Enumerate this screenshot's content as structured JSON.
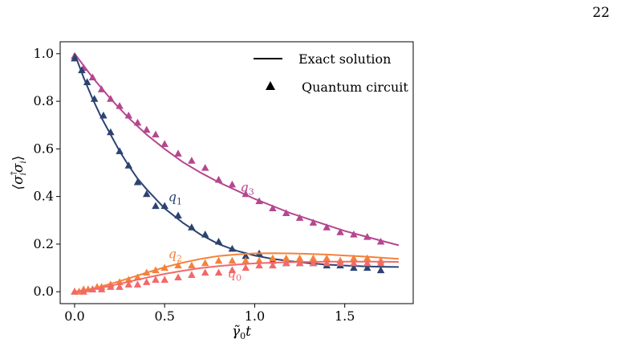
{
  "page_number": "22",
  "chart_data": {
    "type": "line",
    "xlabel": "γ̃₀t",
    "ylabel": "⟨σᵢ†σᵢ⟩",
    "xlim": [
      -0.08,
      1.88
    ],
    "ylim": [
      -0.05,
      1.05
    ],
    "x_ticks": [
      0.0,
      0.5,
      1.0,
      1.5
    ],
    "x_tick_labels": [
      "0.0",
      "0.5",
      "1.0",
      "1.5"
    ],
    "y_ticks": [
      0.0,
      0.2,
      0.4,
      0.6,
      0.8,
      1.0
    ],
    "y_tick_labels": [
      "0.0",
      "0.2",
      "0.4",
      "0.6",
      "0.8",
      "1.0"
    ],
    "grid": false,
    "legend": {
      "placement": "top-right",
      "entries": [
        {
          "label": "Exact solution",
          "marker": "line"
        },
        {
          "label": "Quantum circuit",
          "marker": "triangle"
        }
      ]
    },
    "series": [
      {
        "name": "q3",
        "color": "#b5478f",
        "exact": {
          "x": [
            0.0,
            0.1,
            0.2,
            0.3,
            0.4,
            0.5,
            0.6,
            0.7,
            0.8,
            0.9,
            1.0,
            1.1,
            1.2,
            1.3,
            1.4,
            1.5,
            1.6,
            1.7,
            1.8
          ],
          "y": [
            1.0,
            0.9,
            0.81,
            0.73,
            0.66,
            0.6,
            0.545,
            0.5,
            0.46,
            0.425,
            0.39,
            0.36,
            0.33,
            0.305,
            0.28,
            0.255,
            0.235,
            0.215,
            0.195
          ]
        },
        "circuit": {
          "x": [
            0.0,
            0.05,
            0.1,
            0.15,
            0.2,
            0.25,
            0.3,
            0.35,
            0.4,
            0.45,
            0.5,
            0.575,
            0.65,
            0.725,
            0.8,
            0.875,
            0.95,
            1.025,
            1.1,
            1.175,
            1.25,
            1.325,
            1.4,
            1.475,
            1.55,
            1.625,
            1.7
          ],
          "y": [
            0.99,
            0.94,
            0.9,
            0.85,
            0.81,
            0.78,
            0.74,
            0.71,
            0.68,
            0.66,
            0.62,
            0.58,
            0.55,
            0.52,
            0.47,
            0.45,
            0.41,
            0.38,
            0.35,
            0.33,
            0.31,
            0.29,
            0.27,
            0.25,
            0.24,
            0.23,
            0.21
          ]
        },
        "label": "q3",
        "label_x": 0.92,
        "label_y": 0.42
      },
      {
        "name": "q1",
        "color": "#2c4371",
        "exact": {
          "x": [
            0.0,
            0.05,
            0.1,
            0.15,
            0.2,
            0.25,
            0.3,
            0.35,
            0.4,
            0.45,
            0.5,
            0.6,
            0.7,
            0.8,
            0.9,
            1.0,
            1.1,
            1.2,
            1.3,
            1.4,
            1.5,
            1.6,
            1.7,
            1.8
          ],
          "y": [
            1.0,
            0.9,
            0.81,
            0.73,
            0.66,
            0.59,
            0.53,
            0.475,
            0.43,
            0.39,
            0.35,
            0.29,
            0.24,
            0.2,
            0.172,
            0.152,
            0.138,
            0.128,
            0.12,
            0.114,
            0.11,
            0.107,
            0.105,
            0.104
          ]
        },
        "circuit": {
          "x": [
            0.0,
            0.04,
            0.07,
            0.11,
            0.16,
            0.2,
            0.25,
            0.3,
            0.35,
            0.4,
            0.45,
            0.5,
            0.575,
            0.65,
            0.725,
            0.8,
            0.875,
            0.95,
            1.025,
            1.1,
            1.175,
            1.25,
            1.325,
            1.4,
            1.475,
            1.55,
            1.625,
            1.7
          ],
          "y": [
            0.98,
            0.93,
            0.88,
            0.81,
            0.74,
            0.67,
            0.59,
            0.53,
            0.46,
            0.41,
            0.36,
            0.36,
            0.32,
            0.27,
            0.24,
            0.21,
            0.18,
            0.15,
            0.16,
            0.13,
            0.12,
            0.12,
            0.12,
            0.11,
            0.11,
            0.1,
            0.1,
            0.09
          ]
        },
        "label": "q1",
        "label_x": 0.52,
        "label_y": 0.38
      },
      {
        "name": "q2",
        "color": "#f5823a",
        "exact": {
          "x": [
            0.0,
            0.1,
            0.2,
            0.3,
            0.4,
            0.5,
            0.6,
            0.7,
            0.8,
            0.9,
            1.0,
            1.1,
            1.2,
            1.3,
            1.4,
            1.5,
            1.6,
            1.7,
            1.8
          ],
          "y": [
            0.0,
            0.013,
            0.033,
            0.056,
            0.08,
            0.103,
            0.122,
            0.138,
            0.15,
            0.157,
            0.161,
            0.162,
            0.161,
            0.159,
            0.156,
            0.152,
            0.148,
            0.143,
            0.138
          ]
        },
        "circuit": {
          "x": [
            0.0,
            0.025,
            0.05,
            0.075,
            0.1,
            0.125,
            0.15,
            0.2,
            0.25,
            0.3,
            0.35,
            0.4,
            0.45,
            0.5,
            0.575,
            0.65,
            0.725,
            0.8,
            0.875,
            0.95,
            1.025,
            1.1,
            1.175,
            1.25,
            1.325,
            1.4,
            1.475,
            1.55,
            1.625,
            1.7
          ],
          "y": [
            0.0,
            0.0,
            0.01,
            0.01,
            0.01,
            0.02,
            0.02,
            0.03,
            0.04,
            0.05,
            0.06,
            0.08,
            0.09,
            0.1,
            0.11,
            0.11,
            0.12,
            0.13,
            0.13,
            0.13,
            0.13,
            0.14,
            0.14,
            0.14,
            0.14,
            0.14,
            0.13,
            0.14,
            0.14,
            0.13
          ]
        },
        "label": "q2",
        "label_x": 0.52,
        "label_y": 0.14
      },
      {
        "name": "q0",
        "color": "#f2696b",
        "exact": {
          "x": [
            0.0,
            0.1,
            0.2,
            0.3,
            0.4,
            0.5,
            0.6,
            0.7,
            0.8,
            0.9,
            1.0,
            1.1,
            1.2,
            1.3,
            1.4,
            1.5,
            1.6,
            1.7,
            1.8
          ],
          "y": [
            0.0,
            0.01,
            0.025,
            0.042,
            0.059,
            0.075,
            0.088,
            0.099,
            0.108,
            0.114,
            0.119,
            0.122,
            0.124,
            0.125,
            0.126,
            0.126,
            0.126,
            0.126,
            0.125
          ]
        },
        "circuit": {
          "x": [
            0.0,
            0.05,
            0.1,
            0.15,
            0.2,
            0.25,
            0.3,
            0.35,
            0.4,
            0.45,
            0.5,
            0.575,
            0.65,
            0.725,
            0.8,
            0.875,
            0.95,
            1.025,
            1.1,
            1.175,
            1.25,
            1.325,
            1.4,
            1.475,
            1.55,
            1.625,
            1.7
          ],
          "y": [
            0.0,
            0.0,
            0.01,
            0.01,
            0.02,
            0.02,
            0.03,
            0.03,
            0.04,
            0.05,
            0.05,
            0.06,
            0.07,
            0.08,
            0.08,
            0.09,
            0.1,
            0.11,
            0.11,
            0.12,
            0.12,
            0.12,
            0.12,
            0.12,
            0.12,
            0.12,
            0.12
          ]
        },
        "label": "q0",
        "label_x": 0.85,
        "label_y": 0.06
      }
    ]
  }
}
